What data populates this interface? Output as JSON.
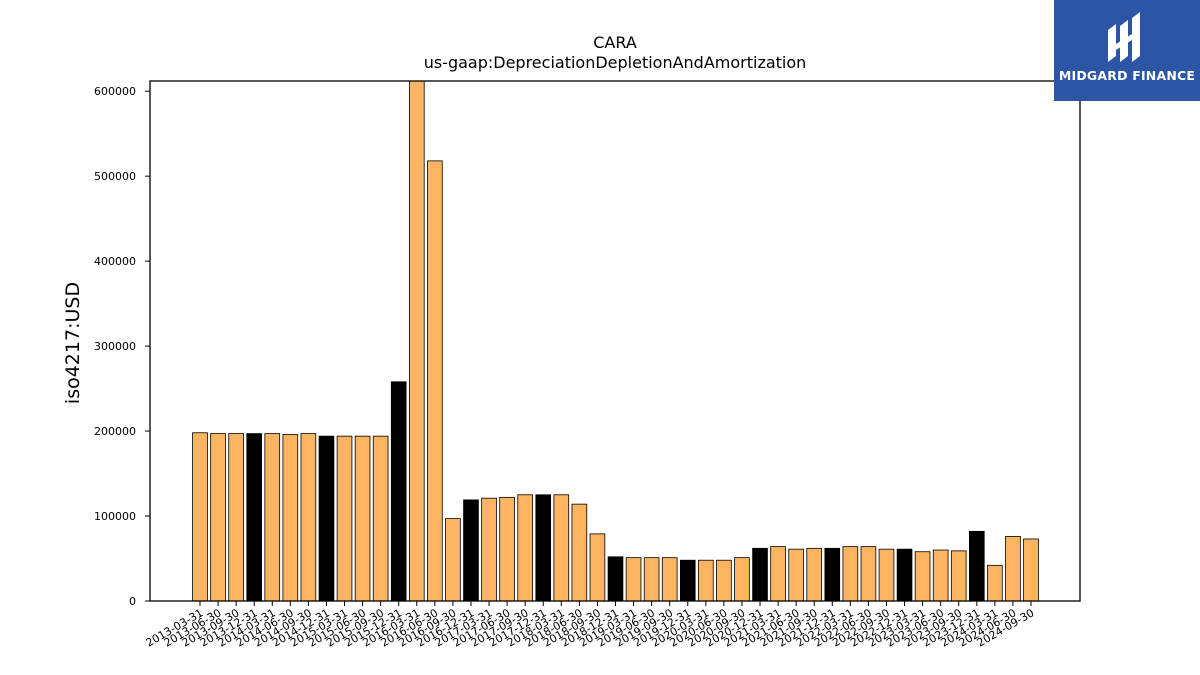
{
  "logo": {
    "brand_text": "MIDGARD FINANCE",
    "colors": {
      "background": "#2c55a5",
      "foreground": "#ffffff"
    }
  },
  "chart_data": {
    "type": "bar",
    "title": "CARA",
    "subtitle": "us-gaap:DepreciationDepletionAndAmortization",
    "ylabel": "iso4217:USD",
    "xlabel": "",
    "ylim": [
      0,
      612000
    ],
    "yticks": [
      0,
      100000,
      200000,
      300000,
      400000,
      500000,
      600000
    ],
    "grid": false,
    "legend": "none",
    "colors": {
      "normal": "#fdb462",
      "highlight": "#000000",
      "edge": "#000000"
    },
    "categories": [
      "2013-03-31",
      "2013-06-30",
      "2013-09-30",
      "2013-12-31",
      "2014-03-31",
      "2014-06-30",
      "2014-09-30",
      "2014-12-31",
      "2015-03-31",
      "2015-06-30",
      "2015-09-30",
      "2015-12-31",
      "2016-03-31",
      "2016-06-30",
      "2016-09-30",
      "2016-12-31",
      "2017-03-31",
      "2017-06-30",
      "2017-09-30",
      "2017-12-31",
      "2018-03-31",
      "2018-06-30",
      "2018-09-30",
      "2018-12-31",
      "2019-03-31",
      "2019-06-30",
      "2019-09-30",
      "2019-12-31",
      "2020-03-31",
      "2020-06-30",
      "2020-09-30",
      "2020-12-31",
      "2021-03-31",
      "2021-06-30",
      "2021-09-30",
      "2021-12-31",
      "2022-03-31",
      "2022-06-30",
      "2022-09-30",
      "2022-12-31",
      "2023-03-31",
      "2023-06-30",
      "2023-09-30",
      "2023-12-31",
      "2024-03-31",
      "2024-06-30",
      "2024-09-30"
    ],
    "values": [
      198000,
      197000,
      197000,
      197000,
      197000,
      196000,
      197000,
      194000,
      194000,
      194000,
      194000,
      258000,
      612000,
      518000,
      97000,
      119000,
      121000,
      122000,
      125000,
      125000,
      125000,
      114000,
      79000,
      52000,
      51000,
      51000,
      51000,
      48000,
      48000,
      48000,
      51000,
      62000,
      64000,
      61000,
      62000,
      62000,
      64000,
      64000,
      61000,
      61000,
      58000,
      60000,
      59000,
      82000,
      42000,
      76000,
      73000
    ],
    "highlight": [
      false,
      false,
      false,
      true,
      false,
      false,
      false,
      true,
      false,
      false,
      false,
      true,
      false,
      false,
      false,
      true,
      false,
      false,
      false,
      true,
      false,
      false,
      false,
      true,
      false,
      false,
      false,
      true,
      false,
      false,
      false,
      true,
      false,
      false,
      false,
      true,
      false,
      false,
      false,
      true,
      false,
      false,
      false,
      true,
      false,
      false,
      false
    ]
  }
}
